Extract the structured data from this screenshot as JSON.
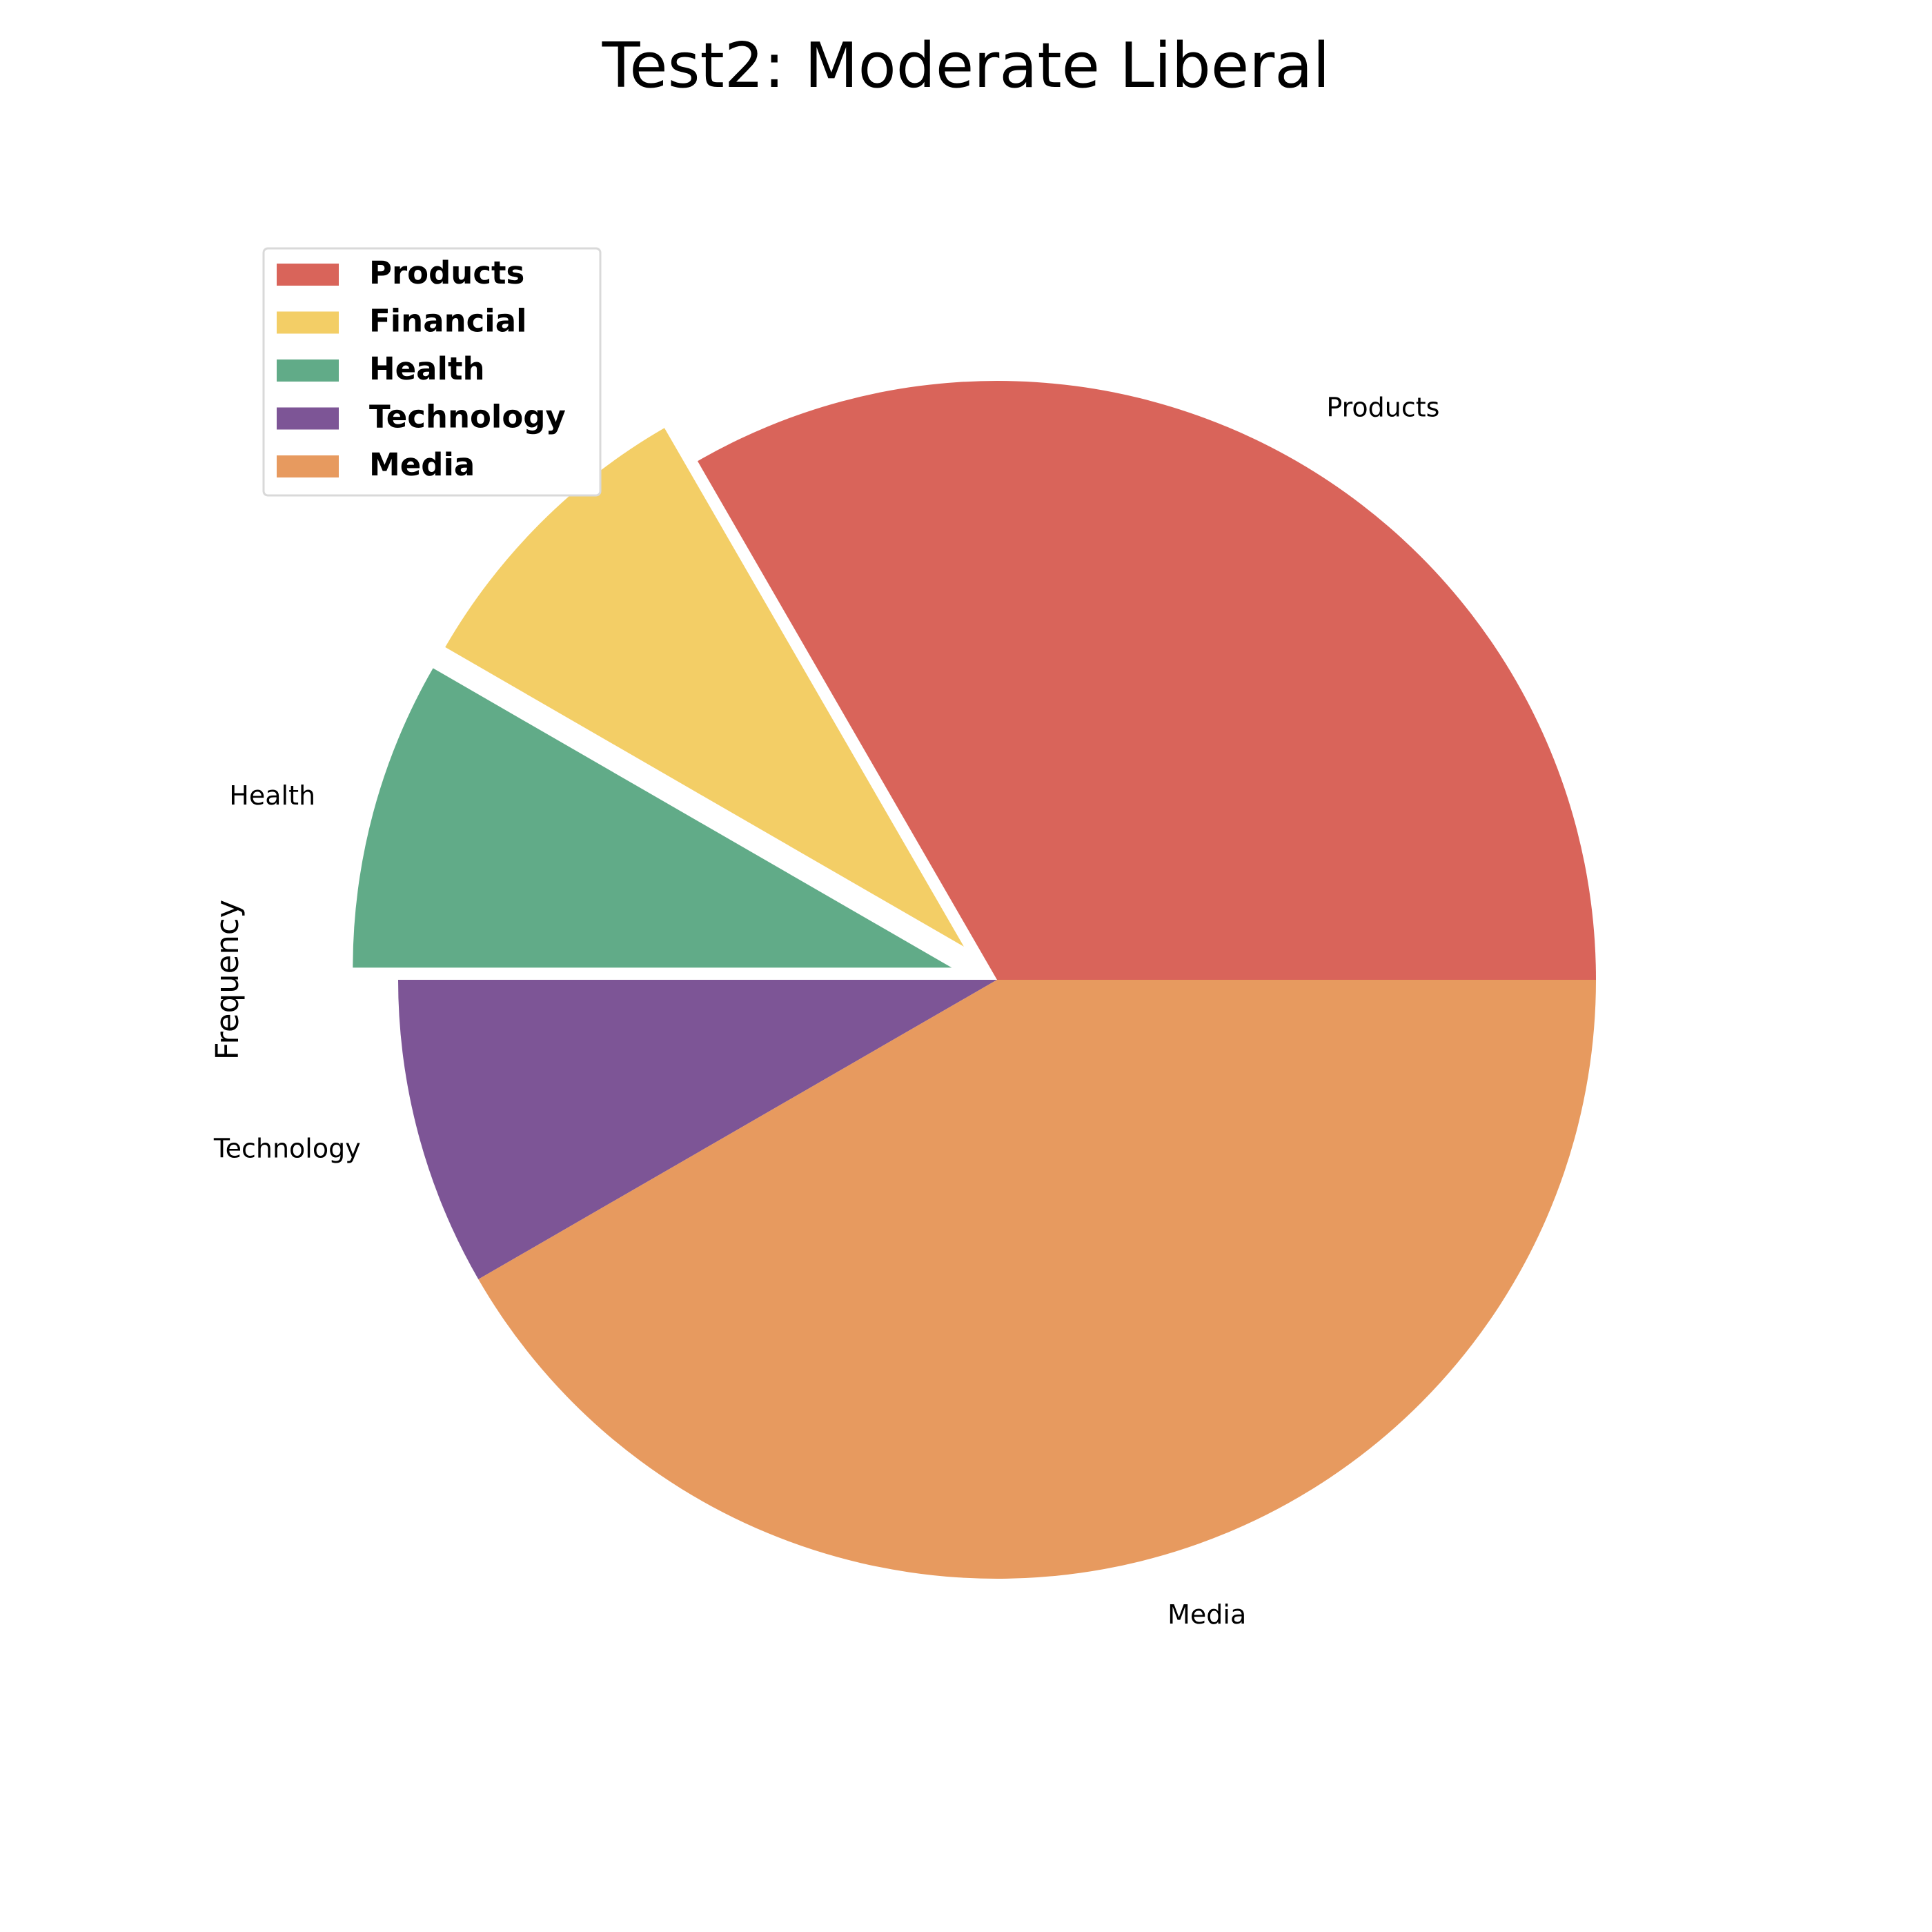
{
  "chart_data": {
    "type": "pie",
    "title": "Test2: Moderate Liberal",
    "ylabel": "Frequency",
    "categories": [
      "Products",
      "Financial",
      "Health",
      "Technology",
      "Media"
    ],
    "values": [
      4,
      1,
      1,
      1,
      5
    ],
    "colors": [
      "#d9645a",
      "#f3ce66",
      "#61ab88",
      "#7d5596",
      "#e79a5f"
    ],
    "exploded": [
      false,
      true,
      true,
      false,
      false
    ],
    "start_angle_deg": 0,
    "direction": "counterclockwise",
    "legend_position": "upper-left"
  }
}
